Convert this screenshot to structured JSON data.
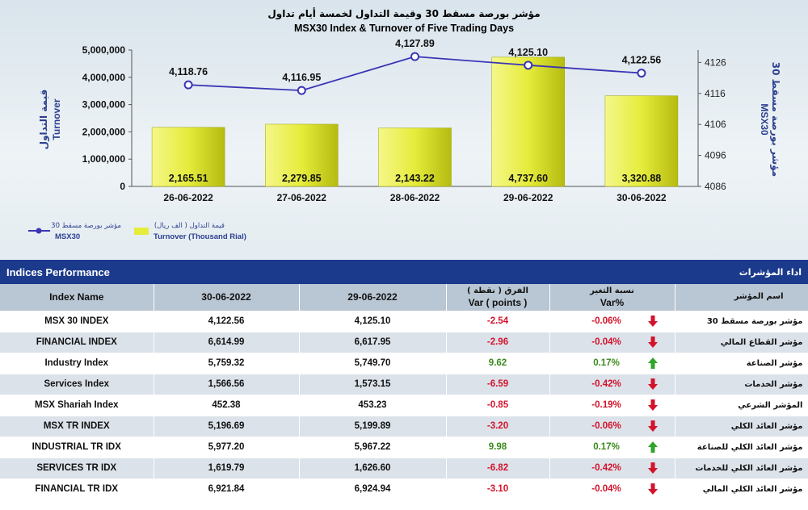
{
  "chart_data": {
    "type": "bar",
    "title_ar": "مؤشر بورصة مسقط 30 وقيمة التداول لخمسة أيام تداول",
    "title": "MSX30 Index & Turnover of Five Trading Days",
    "categories": [
      "26-06-2022",
      "27-06-2022",
      "28-06-2022",
      "29-06-2022",
      "30-06-2022"
    ],
    "series": [
      {
        "name": "Turnover (Thousand Rial)",
        "name_ar": "قيمة التداول ( الف ريال)",
        "type": "bar",
        "axis": "left",
        "values": [
          2165.51,
          2279.85,
          2143.22,
          4737.6,
          3320.88
        ],
        "labels": [
          "2,165.51",
          "2,279.85",
          "2,143.22",
          "4,737.60",
          "3,320.88"
        ]
      },
      {
        "name": "MSX30",
        "name_ar": "مؤشر بورصة مسقط 30",
        "type": "line",
        "axis": "right",
        "values": [
          4118.76,
          4116.95,
          4127.89,
          4125.1,
          4122.56
        ],
        "labels": [
          "4,118.76",
          "4,116.95",
          "4,127.89",
          "4,125.10",
          "4,122.56"
        ]
      }
    ],
    "ylabel": "Turnover",
    "ylabel_ar": "قيمة التداول",
    "ylim": [
      0,
      5000000
    ],
    "yticks": [
      "0",
      "1,000,000",
      "2,000,000",
      "3,000,000",
      "4,000,000",
      "5,000,000"
    ],
    "y2label": "MSX30",
    "y2label_ar": "مؤشر بورصة مسقط 30",
    "y2lim": [
      4086,
      4130
    ],
    "y2ticks": [
      "4086",
      "4096",
      "4106",
      "4116",
      "4126"
    ],
    "bar_color": "#e6ec3a",
    "line_color": "#3a35b5",
    "legend": "bottom-left"
  },
  "table": {
    "title": "Indices Performance",
    "title_ar": "اداء المؤشرات",
    "headers": {
      "name": "Index Name",
      "d1": "30-06-2022",
      "d2": "29-06-2022",
      "var_ar": "الفرق ( نقطة )",
      "var": "Var ( points )",
      "pct_ar": "نسبة التغير",
      "pct": "Var%",
      "name_ar": "اسم المؤشر"
    },
    "rows": [
      {
        "name": "MSX 30 INDEX",
        "d1": "4,122.56",
        "d2": "4,125.10",
        "var": "-2.54",
        "pct": "-0.06%",
        "dir": "down",
        "name_ar": "مؤشر بورصة مسقط 30"
      },
      {
        "name": "FINANCIAL INDEX",
        "d1": "6,614.99",
        "d2": "6,617.95",
        "var": "-2.96",
        "pct": "-0.04%",
        "dir": "down",
        "name_ar": "مؤشر القطاع المالي"
      },
      {
        "name": "Industry Index",
        "d1": "5,759.32",
        "d2": "5,749.70",
        "var": "9.62",
        "pct": "0.17%",
        "dir": "up",
        "name_ar": "مؤشر الصناعة"
      },
      {
        "name": "Services Index",
        "d1": "1,566.56",
        "d2": "1,573.15",
        "var": "-6.59",
        "pct": "-0.42%",
        "dir": "down",
        "name_ar": "مؤشر الخدمات"
      },
      {
        "name": "MSX Shariah Index",
        "d1": "452.38",
        "d2": "453.23",
        "var": "-0.85",
        "pct": "-0.19%",
        "dir": "down",
        "name_ar": "المؤشر الشرعي"
      },
      {
        "name": "MSX TR INDEX",
        "d1": "5,196.69",
        "d2": "5,199.89",
        "var": "-3.20",
        "pct": "-0.06%",
        "dir": "down",
        "name_ar": "مؤشر العائد الكلي"
      },
      {
        "name": "INDUSTRIAL TR IDX",
        "d1": "5,977.20",
        "d2": "5,967.22",
        "var": "9.98",
        "pct": "0.17%",
        "dir": "up",
        "name_ar": "مؤشر العائد الكلي للصناعة"
      },
      {
        "name": "SERVICES TR IDX",
        "d1": "1,619.79",
        "d2": "1,626.60",
        "var": "-6.82",
        "pct": "-0.42%",
        "dir": "down",
        "name_ar": "مؤشر العائد الكلي للخدمات"
      },
      {
        "name": "FINANCIAL TR IDX",
        "d1": "6,921.84",
        "d2": "6,924.94",
        "var": "-3.10",
        "pct": "-0.04%",
        "dir": "down",
        "name_ar": "مؤشر العائد الكلي المالي"
      }
    ],
    "colors": {
      "up": "#2fa52a",
      "down": "#d4122a"
    }
  }
}
